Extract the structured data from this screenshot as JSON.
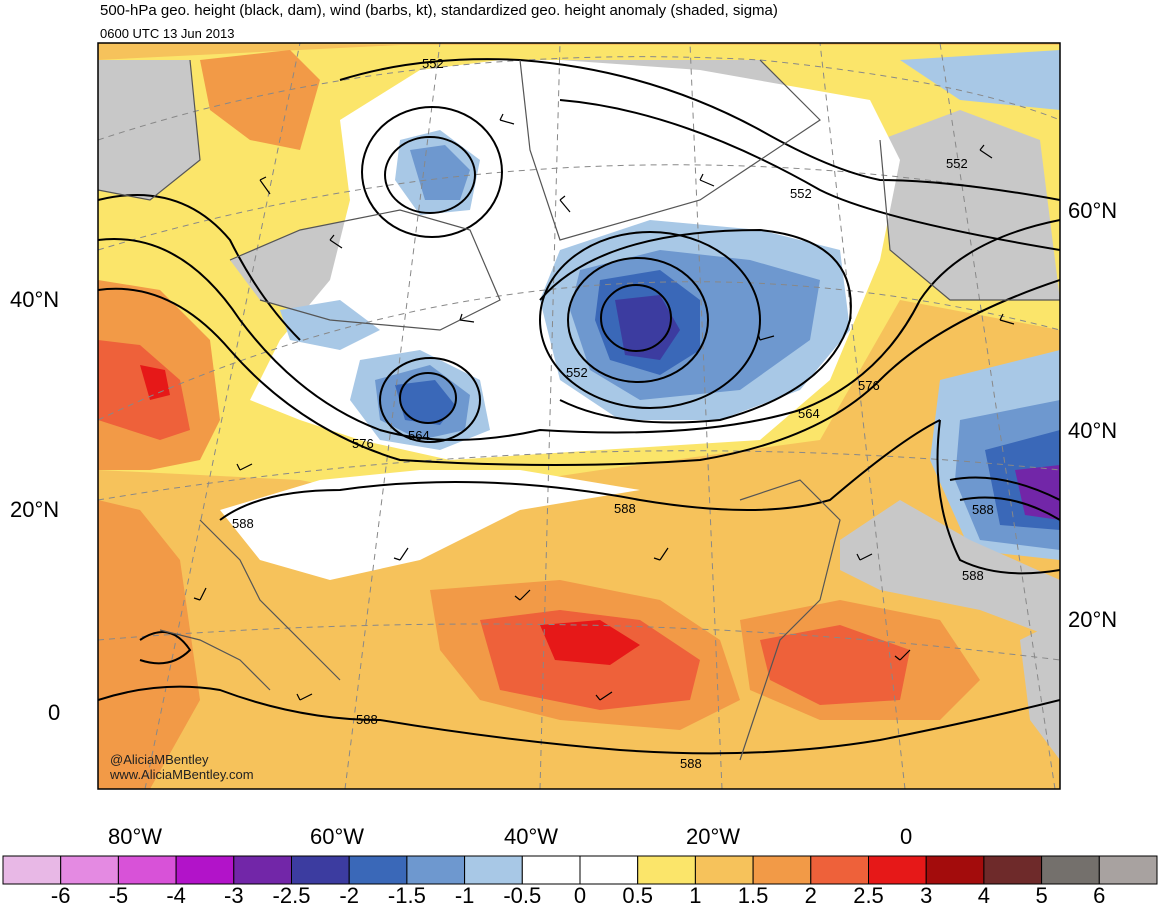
{
  "title": "500-hPa geo. height (black, dam), wind (barbs, kt), standardized geo. height anomaly (shaded, sigma)",
  "subtitle": "0600 UTC 13 Jun 2013",
  "credits": [
    "@AliciaMBentley",
    "www.AliciaMBentley.com"
  ],
  "lat_labels_left": [
    "40°N",
    "20°N",
    "0"
  ],
  "lat_labels_right": [
    "60°N",
    "40°N",
    "20°N"
  ],
  "lon_labels": [
    "80°W",
    "60°W",
    "40°W",
    "20°W",
    "0"
  ],
  "contour_labels": [
    "552",
    "552",
    "552",
    "552",
    "564",
    "564",
    "576",
    "576",
    "588",
    "588",
    "588",
    "588",
    "588"
  ],
  "colorbar": {
    "ticks": [
      "-6",
      "-5",
      "-4",
      "-3",
      "-2.5",
      "-2",
      "-1.5",
      "-1",
      "-0.5",
      "0",
      "0.5",
      "1",
      "1.5",
      "2",
      "2.5",
      "3",
      "4",
      "5",
      "6"
    ],
    "colors": [
      "#e8b8e6",
      "#e48ae2",
      "#d852d8",
      "#b213c9",
      "#7226a8",
      "#3c3ca0",
      "#3a68b8",
      "#6e98cf",
      "#a8c8e6",
      "#ffffff",
      "#ffffff",
      "#fbe56a",
      "#f6c25b",
      "#f29a47",
      "#ee613a",
      "#e61818",
      "#a30c0c",
      "#6e2a2a",
      "#74706c",
      "#a8a2a0"
    ]
  },
  "colors": {
    "land": "#c8c8c8",
    "ocean_neutral": "#ffffff",
    "contour": "#000000",
    "grid": "#888888"
  }
}
